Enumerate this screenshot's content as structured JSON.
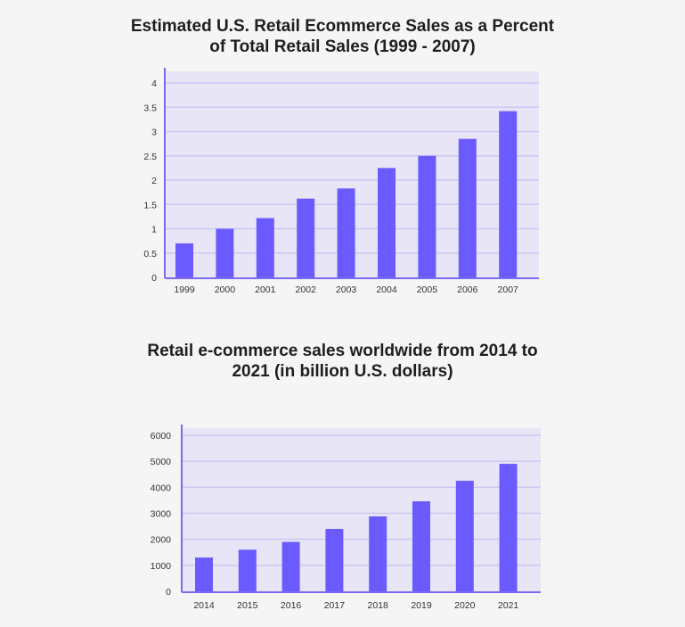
{
  "chart_data": [
    {
      "type": "bar",
      "title_line1": "Estimated U.S. Retail Ecommerce Sales as a Percent",
      "title_line2": "of Total Retail Sales (1999 - 2007)",
      "xlabel": "",
      "ylabel": "",
      "categories": [
        "1999",
        "2000",
        "2001",
        "2002",
        "2003",
        "2004",
        "2005",
        "2006",
        "2007"
      ],
      "values": [
        0.7,
        1.0,
        1.22,
        1.62,
        1.83,
        2.25,
        2.5,
        2.85,
        3.42
      ],
      "ylim": [
        0,
        4
      ],
      "yticks": [
        "0",
        "0.5",
        "1",
        "1.5",
        "2",
        "2.5",
        "3",
        "3.5",
        "4"
      ],
      "grid": true,
      "colors": {
        "bar": "#6b5bff",
        "plot_bg": "#e8e5f7",
        "grid": "#cdc7f5",
        "axis": "#7a6cf0"
      }
    },
    {
      "type": "bar",
      "title_line1": "Retail e-commerce sales worldwide from 2014 to",
      "title_line2": "2021 (in billion U.S. dollars)",
      "xlabel": "",
      "ylabel": "",
      "categories": [
        "2014",
        "2015",
        "2016",
        "2017",
        "2018",
        "2019",
        "2020",
        "2021"
      ],
      "values": [
        1300,
        1600,
        1900,
        2400,
        2880,
        3460,
        4250,
        4900
      ],
      "ylim": [
        0,
        6000
      ],
      "yticks": [
        "0",
        "1000",
        "2000",
        "3000",
        "4000",
        "5000",
        "6000"
      ],
      "grid": true,
      "colors": {
        "bar": "#6b5bff",
        "plot_bg": "#e8e5f7",
        "grid": "#cdc7f5",
        "axis": "#7a6cf0"
      }
    }
  ]
}
